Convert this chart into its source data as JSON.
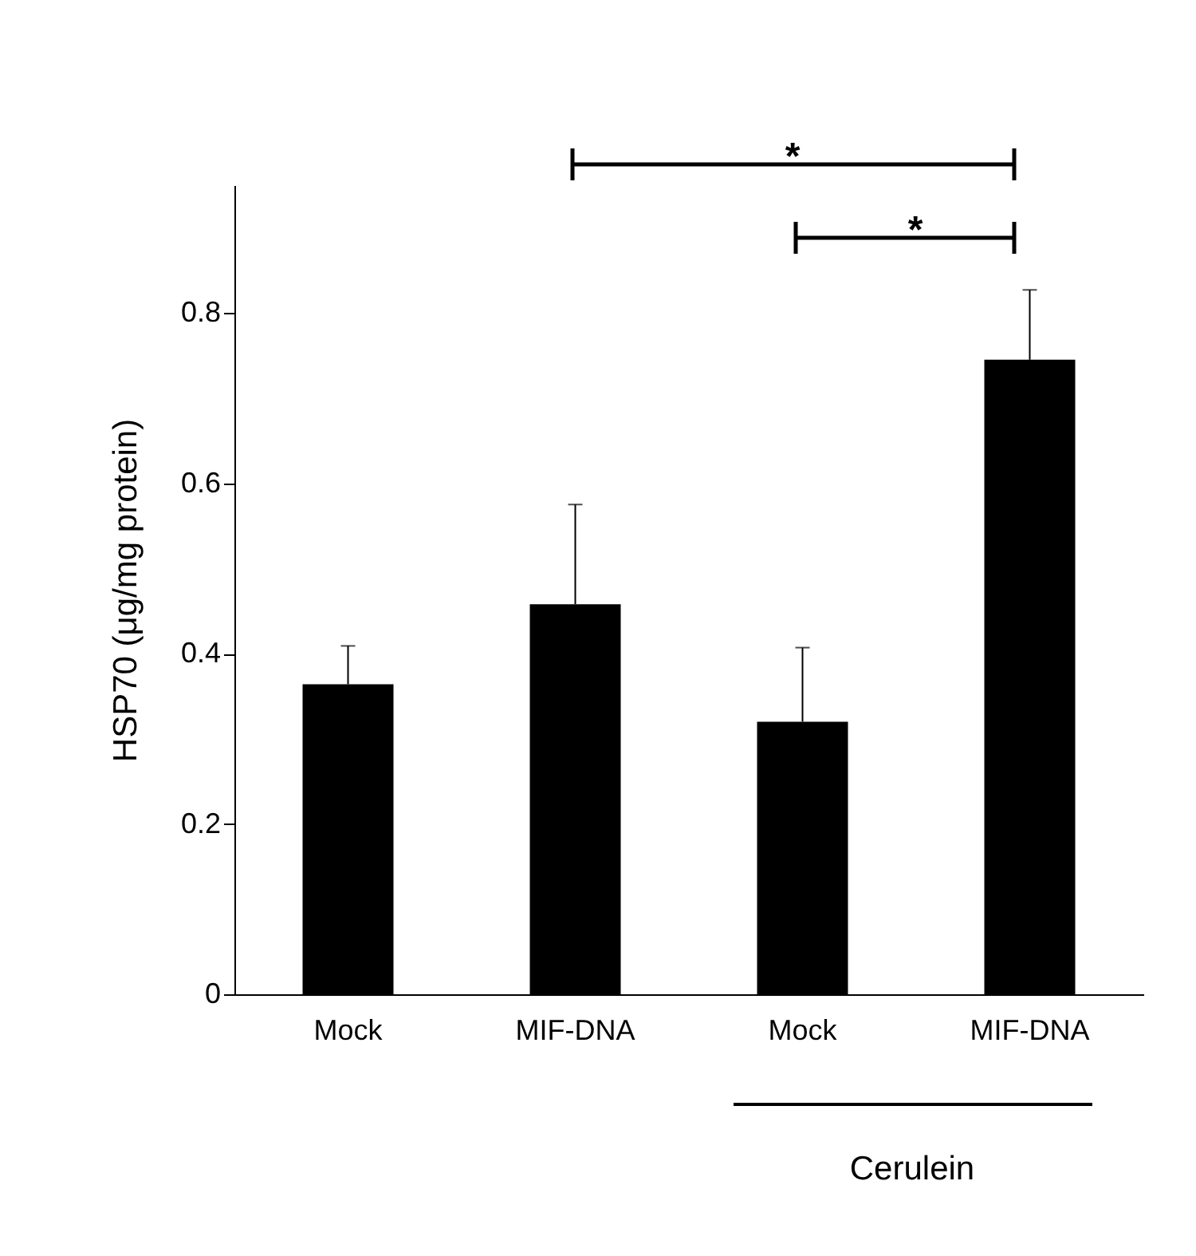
{
  "chart_data": {
    "type": "bar",
    "ylabel": "HSP70 (μg/mg protein)",
    "categories": [
      "Mock",
      "MIF-DNA",
      "Mock",
      "MIF-DNA"
    ],
    "values": [
      0.364,
      0.458,
      0.32,
      0.745
    ],
    "errors": [
      [
        0.364,
        0.409
      ],
      [
        0.458,
        0.575
      ],
      [
        0.32,
        0.407
      ],
      [
        0.745,
        0.827
      ]
    ],
    "color": "#000000",
    "ylim": [
      0,
      0.95
    ],
    "yticks": [
      0,
      0.2,
      0.4,
      0.6,
      0.8
    ],
    "grid": false,
    "annotations": [
      "*",
      "*",
      "Cerulein"
    ]
  }
}
